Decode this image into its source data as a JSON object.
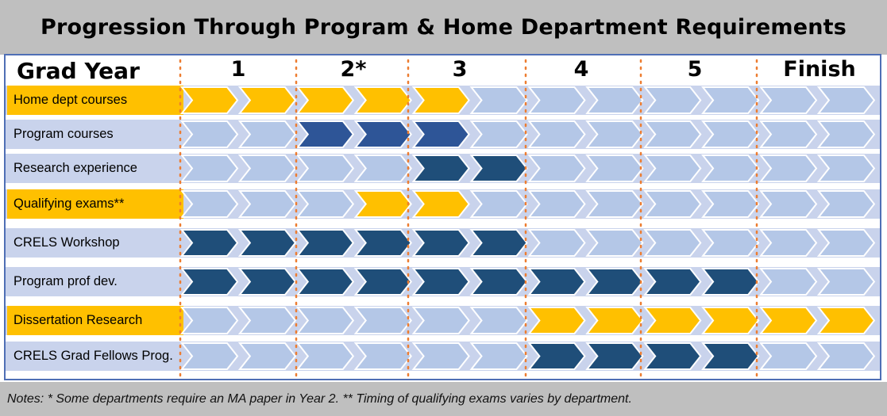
{
  "title": "Progression Through Program & Home Department Requirements",
  "header": {
    "grad_year_label": "Grad Year",
    "years": [
      "1",
      "2*",
      "3",
      "4",
      "5",
      "Finish"
    ]
  },
  "rows": [
    {
      "label": "Home dept courses",
      "label_style": "gold",
      "fills": [
        "gold",
        "gold",
        "gold",
        "gold",
        "gold",
        "none",
        "none",
        "none",
        "none",
        "none",
        "none",
        "none"
      ]
    },
    {
      "label": "Program courses",
      "label_style": "plain",
      "fills": [
        "none",
        "none",
        "blue",
        "blue",
        "blue",
        "none",
        "none",
        "none",
        "none",
        "none",
        "none",
        "none"
      ]
    },
    {
      "label": "Research experience",
      "label_style": "plain",
      "fills": [
        "none",
        "none",
        "none",
        "none",
        "navy",
        "navy",
        "none",
        "none",
        "none",
        "none",
        "none",
        "none"
      ]
    },
    {
      "label": "Qualifying exams**",
      "label_style": "gold",
      "fills": [
        "none",
        "none",
        "none",
        "gold",
        "gold",
        "none",
        "none",
        "none",
        "none",
        "none",
        "none",
        "none"
      ]
    },
    {
      "label": "CRELS Workshop",
      "label_style": "plain",
      "fills": [
        "navy",
        "navy",
        "navy",
        "navy",
        "navy",
        "navy",
        "none",
        "none",
        "none",
        "none",
        "none",
        "none"
      ]
    },
    {
      "label": "Program prof dev.",
      "label_style": "plain",
      "fills": [
        "navy",
        "navy",
        "navy",
        "navy",
        "navy",
        "navy",
        "navy",
        "navy",
        "navy",
        "navy",
        "none",
        "none"
      ]
    },
    {
      "label": "Dissertation Research",
      "label_style": "gold",
      "fills": [
        "none",
        "none",
        "none",
        "none",
        "none",
        "none",
        "gold",
        "gold",
        "gold",
        "gold",
        "gold",
        "gold"
      ]
    },
    {
      "label": "CRELS Grad Fellows Prog.",
      "label_style": "plain",
      "fills": [
        "none",
        "none",
        "none",
        "none",
        "none",
        "none",
        "navy",
        "navy",
        "navy",
        "navy",
        "none",
        "none"
      ]
    }
  ],
  "colors": {
    "gold": "#ffc000",
    "blue": "#2e5597",
    "navy": "#1f4e79",
    "none": "#b4c7e7",
    "band": "#c9d3ec",
    "divider": "#ed7d31"
  },
  "notes": "Notes: * Some departments require an MA paper in Year 2. ** Timing of qualifying exams varies by department."
}
